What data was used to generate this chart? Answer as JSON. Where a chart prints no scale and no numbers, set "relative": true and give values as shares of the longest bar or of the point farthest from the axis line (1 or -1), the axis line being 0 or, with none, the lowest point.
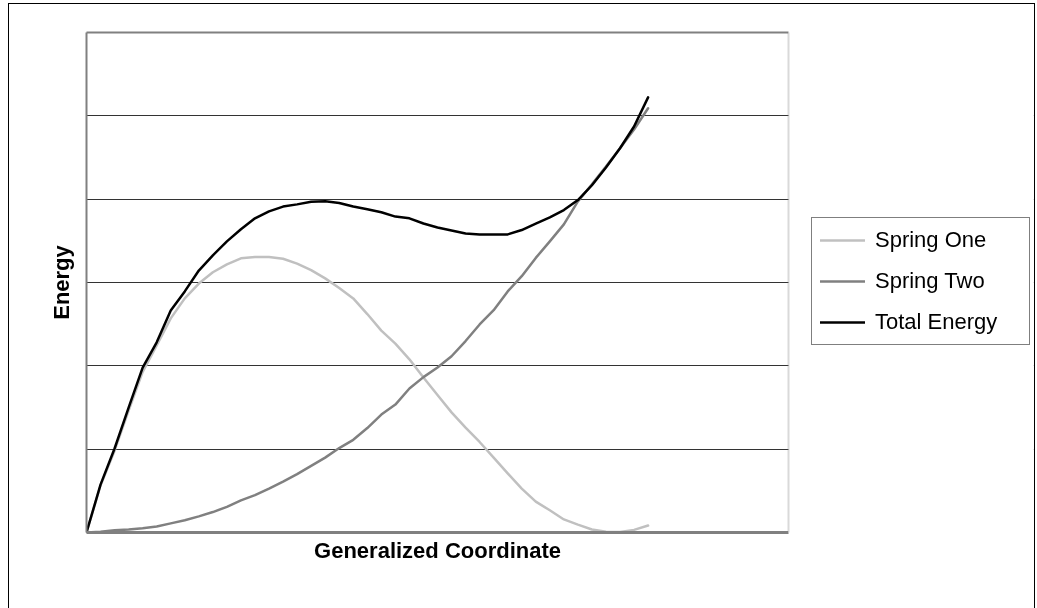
{
  "chart_data": {
    "type": "line",
    "relative": true,
    "xlabel": "Generalized Coordinate",
    "ylabel": "Energy",
    "grid": "y",
    "legend": "right",
    "categories": [
      null,
      null,
      null,
      null,
      null,
      null,
      null,
      null,
      null,
      null,
      null,
      null,
      null,
      null,
      null,
      null,
      null,
      null,
      null,
      null,
      null,
      null,
      null,
      null,
      null,
      null,
      null,
      null,
      null,
      null,
      null,
      null,
      null,
      null,
      null,
      null,
      null,
      null,
      null,
      null,
      null,
      null,
      null,
      null,
      null,
      null,
      null,
      null,
      null,
      null,
      null
    ],
    "series": [
      {
        "name": "Spring One",
        "color": "#c0c0c0",
        "values": [
          0,
          0.108,
          0.188,
          0.28,
          0.369,
          0.43,
          0.492,
          0.538,
          0.572,
          0.598,
          0.616,
          0.63,
          0.633,
          0.633,
          0.629,
          0.618,
          0.603,
          0.584,
          0.562,
          0.538,
          0.502,
          0.464,
          0.434,
          0.398,
          0.356,
          0.316,
          0.276,
          0.241,
          0.208,
          0.172,
          0.136,
          0.101,
          0.071,
          0.051,
          0.03,
          0.018,
          0.007,
          0.002,
          0.001,
          0.006,
          0.016,
          null,
          null,
          null,
          null,
          null,
          null,
          null,
          null,
          null,
          null
        ]
      },
      {
        "name": "Spring Two",
        "color": "#808080",
        "values": [
          0,
          0.002,
          0.005,
          0.007,
          0.01,
          0.014,
          0.021,
          0.028,
          0.037,
          0.047,
          0.059,
          0.074,
          0.086,
          0.101,
          0.117,
          0.134,
          0.153,
          0.172,
          0.194,
          0.213,
          0.24,
          0.271,
          0.294,
          0.331,
          0.357,
          0.379,
          0.405,
          0.44,
          0.478,
          0.511,
          0.554,
          0.589,
          0.631,
          0.669,
          0.708,
          0.761,
          0.8,
          0.841,
          0.883,
          0.926,
          0.975,
          null,
          null,
          null,
          null,
          null,
          null,
          null,
          null,
          null,
          null
        ]
      },
      {
        "name": "Total Energy",
        "color": "#000000",
        "values": [
          0,
          0.11,
          0.193,
          0.287,
          0.379,
          0.437,
          0.51,
          0.554,
          0.602,
          0.637,
          0.669,
          0.697,
          0.722,
          0.738,
          0.749,
          0.754,
          0.76,
          0.761,
          0.757,
          0.749,
          0.743,
          0.736,
          0.726,
          0.722,
          0.71,
          0.701,
          0.694,
          0.687,
          0.685,
          0.685,
          0.685,
          0.695,
          0.71,
          0.724,
          0.741,
          0.764,
          0.798,
          0.839,
          0.883,
          0.933,
          1.0,
          null,
          null,
          null,
          null,
          null,
          null,
          null,
          null,
          null,
          null
        ]
      }
    ]
  }
}
